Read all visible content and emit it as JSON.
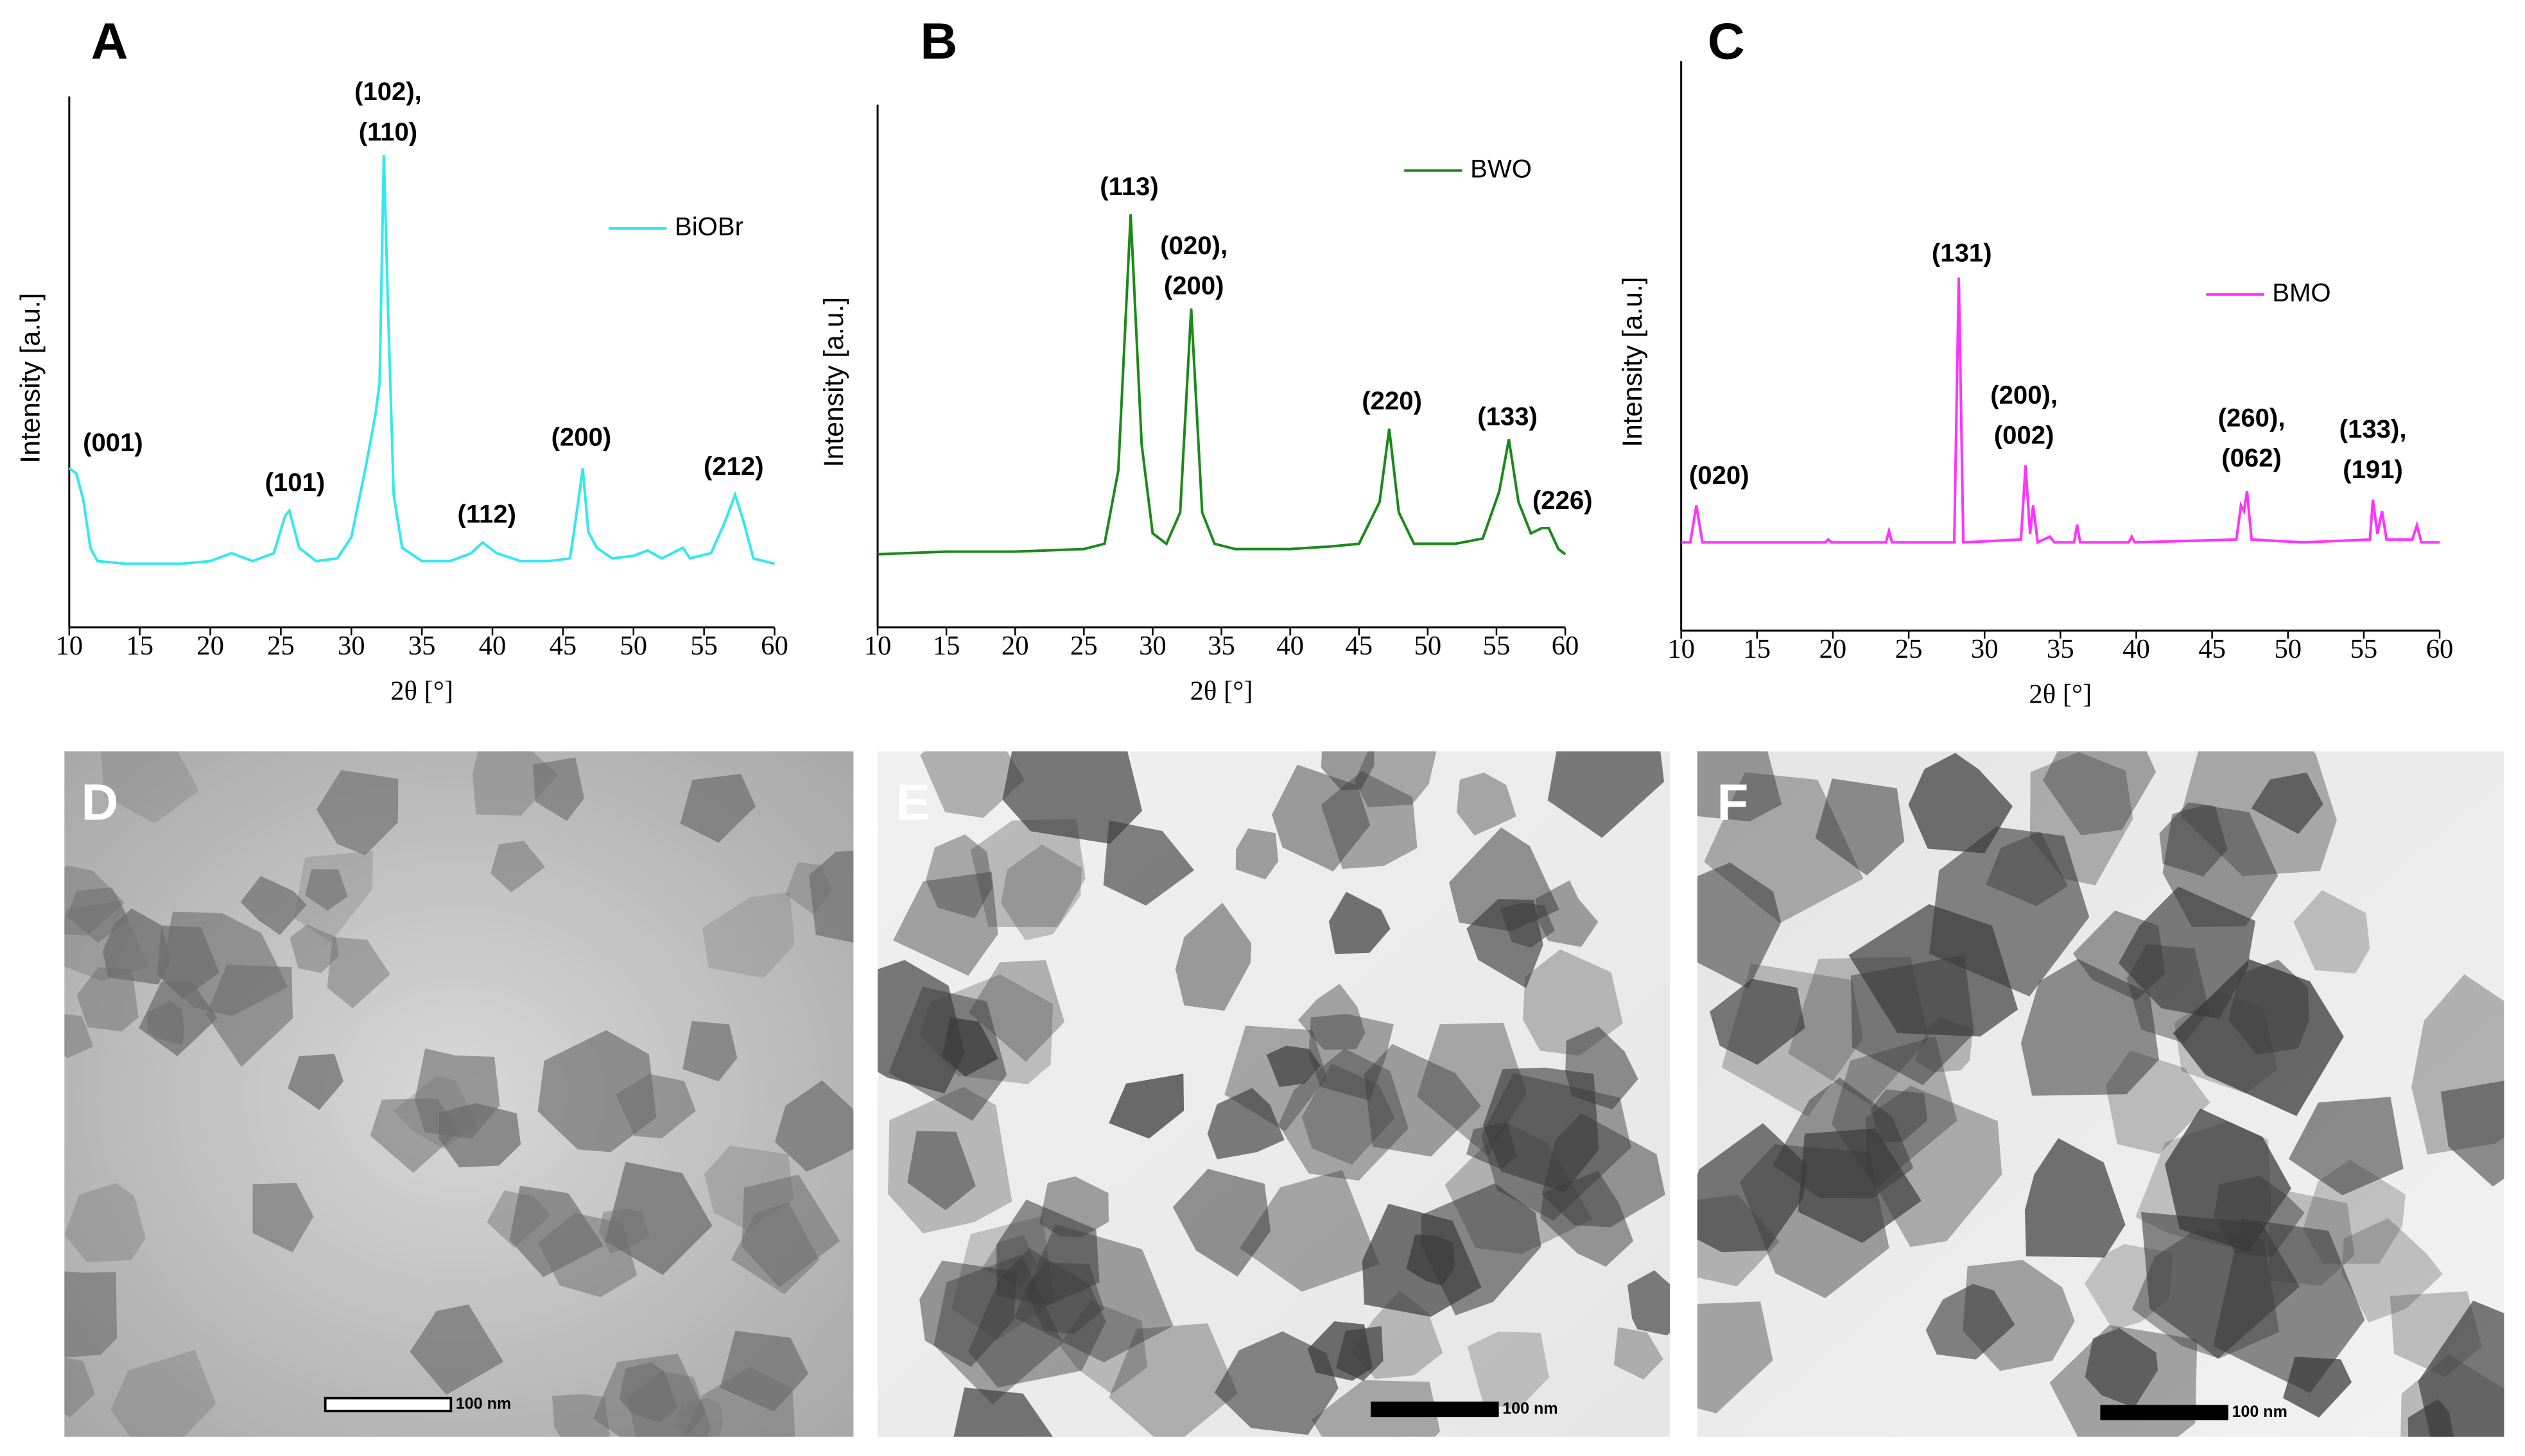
{
  "chart_data": [
    {
      "type": "line",
      "panel": "A",
      "x_label": "2θ [°]",
      "y_label": "Intensity [a.u.]",
      "legend": "upper right",
      "xlim": [
        10,
        60
      ],
      "xticks": [
        10,
        15,
        20,
        25,
        30,
        35,
        40,
        45,
        50,
        55,
        60
      ],
      "ylim": [
        0,
        100
      ],
      "x": [
        10,
        10.5,
        11,
        11.5,
        12,
        14,
        16,
        18,
        20,
        21.5,
        23,
        24.5,
        25.3,
        25.6,
        26.3,
        27.5,
        29,
        30,
        31,
        31.7,
        32,
        32.3,
        32.6,
        33,
        33.6,
        35,
        37,
        38.5,
        39.3,
        40.3,
        42,
        44,
        45.5,
        46.1,
        46.4,
        46.8,
        47.4,
        48.5,
        50,
        51,
        52,
        53.5,
        54,
        55.5,
        56.5,
        57.2,
        57.8,
        58.5,
        60
      ],
      "series": [
        {
          "name": "BiOBr",
          "color": "#33e8ef",
          "values": [
            30,
            29,
            24,
            15,
            12.5,
            12,
            12,
            12,
            12.5,
            14,
            12.5,
            14,
            21,
            22,
            15,
            12.5,
            13,
            17,
            30,
            40,
            46,
            89,
            60,
            25,
            15,
            12.5,
            12.5,
            14,
            16,
            14,
            12.5,
            12.5,
            13,
            24,
            30,
            18,
            15,
            13,
            13.5,
            14.5,
            13,
            15,
            13,
            14,
            20,
            25,
            20,
            13,
            12
          ]
        }
      ],
      "annotations": [
        {
          "text": [
            "(001)"
          ],
          "x": 13.1,
          "y": 34.5
        },
        {
          "text": [
            "(101)"
          ],
          "x": 26,
          "y": 27
        },
        {
          "text": [
            "(102),",
            "(110)"
          ],
          "x": 32.6,
          "y": 93
        },
        {
          "text": [
            "(112)"
          ],
          "x": 39.6,
          "y": 21
        },
        {
          "text": [
            "(200)"
          ],
          "x": 46.3,
          "y": 35.5
        },
        {
          "text": [
            "(212)"
          ],
          "x": 57.1,
          "y": 30
        }
      ]
    },
    {
      "type": "line",
      "panel": "B",
      "x_label": "2θ [°]",
      "y_label": "Intensity [a.u.]",
      "legend": "upper right",
      "xlim": [
        10,
        60
      ],
      "xticks": [
        10,
        15,
        20,
        25,
        30,
        35,
        40,
        45,
        50,
        55,
        60
      ],
      "ylim": [
        0,
        100
      ],
      "x": [
        10,
        15,
        20,
        25,
        26.5,
        27.5,
        28.4,
        29.2,
        30,
        31,
        32,
        32.8,
        33.6,
        34.5,
        36,
        40,
        43,
        45,
        46.5,
        47.2,
        47.9,
        49,
        52,
        54,
        55.2,
        55.9,
        56.6,
        57.5,
        58.3,
        58.8,
        59.5,
        60
      ],
      "series": [
        {
          "name": "BWO",
          "color": "#1a8a1a",
          "values": [
            14,
            14.5,
            14.5,
            15,
            16,
            30,
            79,
            35,
            18,
            16,
            22,
            61,
            22,
            16,
            15,
            15,
            15.5,
            16,
            24,
            38,
            22,
            16,
            16,
            17,
            26,
            36,
            24,
            18,
            19,
            19,
            15,
            14
          ]
        }
      ],
      "annotations": [
        {
          "text": [
            "(113)"
          ],
          "x": 28.3,
          "y": 84
        },
        {
          "text": [
            "(020),",
            "(200)"
          ],
          "x": 33,
          "y": 65
        },
        {
          "text": [
            "(220)"
          ],
          "x": 47.4,
          "y": 43
        },
        {
          "text": [
            "(133)"
          ],
          "x": 55.8,
          "y": 40
        },
        {
          "text": [
            "(226)"
          ],
          "x": 59.8,
          "y": 24
        }
      ]
    },
    {
      "type": "line",
      "panel": "C",
      "x_label": "2θ [°]",
      "y_label": "Intensity [a.u.]",
      "legend": "right",
      "xlim": [
        10,
        60
      ],
      "xticks": [
        10,
        15,
        20,
        25,
        30,
        35,
        40,
        45,
        50,
        55,
        60
      ],
      "ylim": [
        0,
        100
      ],
      "x": [
        10,
        10.6,
        11,
        11.4,
        19.5,
        19.7,
        19.9,
        23.5,
        23.7,
        23.9,
        28,
        28.3,
        28.6,
        32.4,
        32.7,
        33,
        33.2,
        33.5,
        34.3,
        34.6,
        35.9,
        36.1,
        36.3,
        39.5,
        39.7,
        39.9,
        46.6,
        46.9,
        47.1,
        47.3,
        47.6,
        51,
        55.4,
        55.6,
        55.9,
        56.2,
        56.5,
        58.2,
        58.5,
        58.8,
        60
      ],
      "series": [
        {
          "name": "BMO",
          "color": "#ff33ff",
          "values": [
            15.5,
            15.5,
            22,
            15.5,
            15.5,
            16,
            15.5,
            15.5,
            17.5,
            15.5,
            15.5,
            62,
            15.5,
            16,
            29,
            17,
            22,
            15.5,
            16.5,
            15.5,
            15.5,
            18.6,
            15.5,
            15.5,
            16.5,
            15.5,
            16,
            22,
            21,
            24.5,
            16,
            15.5,
            16,
            23,
            17,
            21,
            16,
            16,
            18.5,
            15.5,
            15.5
          ]
        }
      ],
      "annotations": [
        {
          "text": [
            "(020)"
          ],
          "x": 12.5,
          "y": 27
        },
        {
          "text": [
            "(131)"
          ],
          "x": 28.5,
          "y": 66
        },
        {
          "text": [
            "(200),",
            "(002)"
          ],
          "x": 32.6,
          "y": 34
        },
        {
          "text": [
            "(260),",
            "(062)"
          ],
          "x": 47.6,
          "y": 30
        },
        {
          "text": [
            "(133),",
            "(191)"
          ],
          "x": 55.6,
          "y": 28
        }
      ]
    }
  ],
  "images": [
    {
      "panel": "D",
      "scale_bar": "100 nm"
    },
    {
      "panel": "E",
      "scale_bar": "100 nm"
    },
    {
      "panel": "F",
      "scale_bar": "100 nm"
    }
  ]
}
